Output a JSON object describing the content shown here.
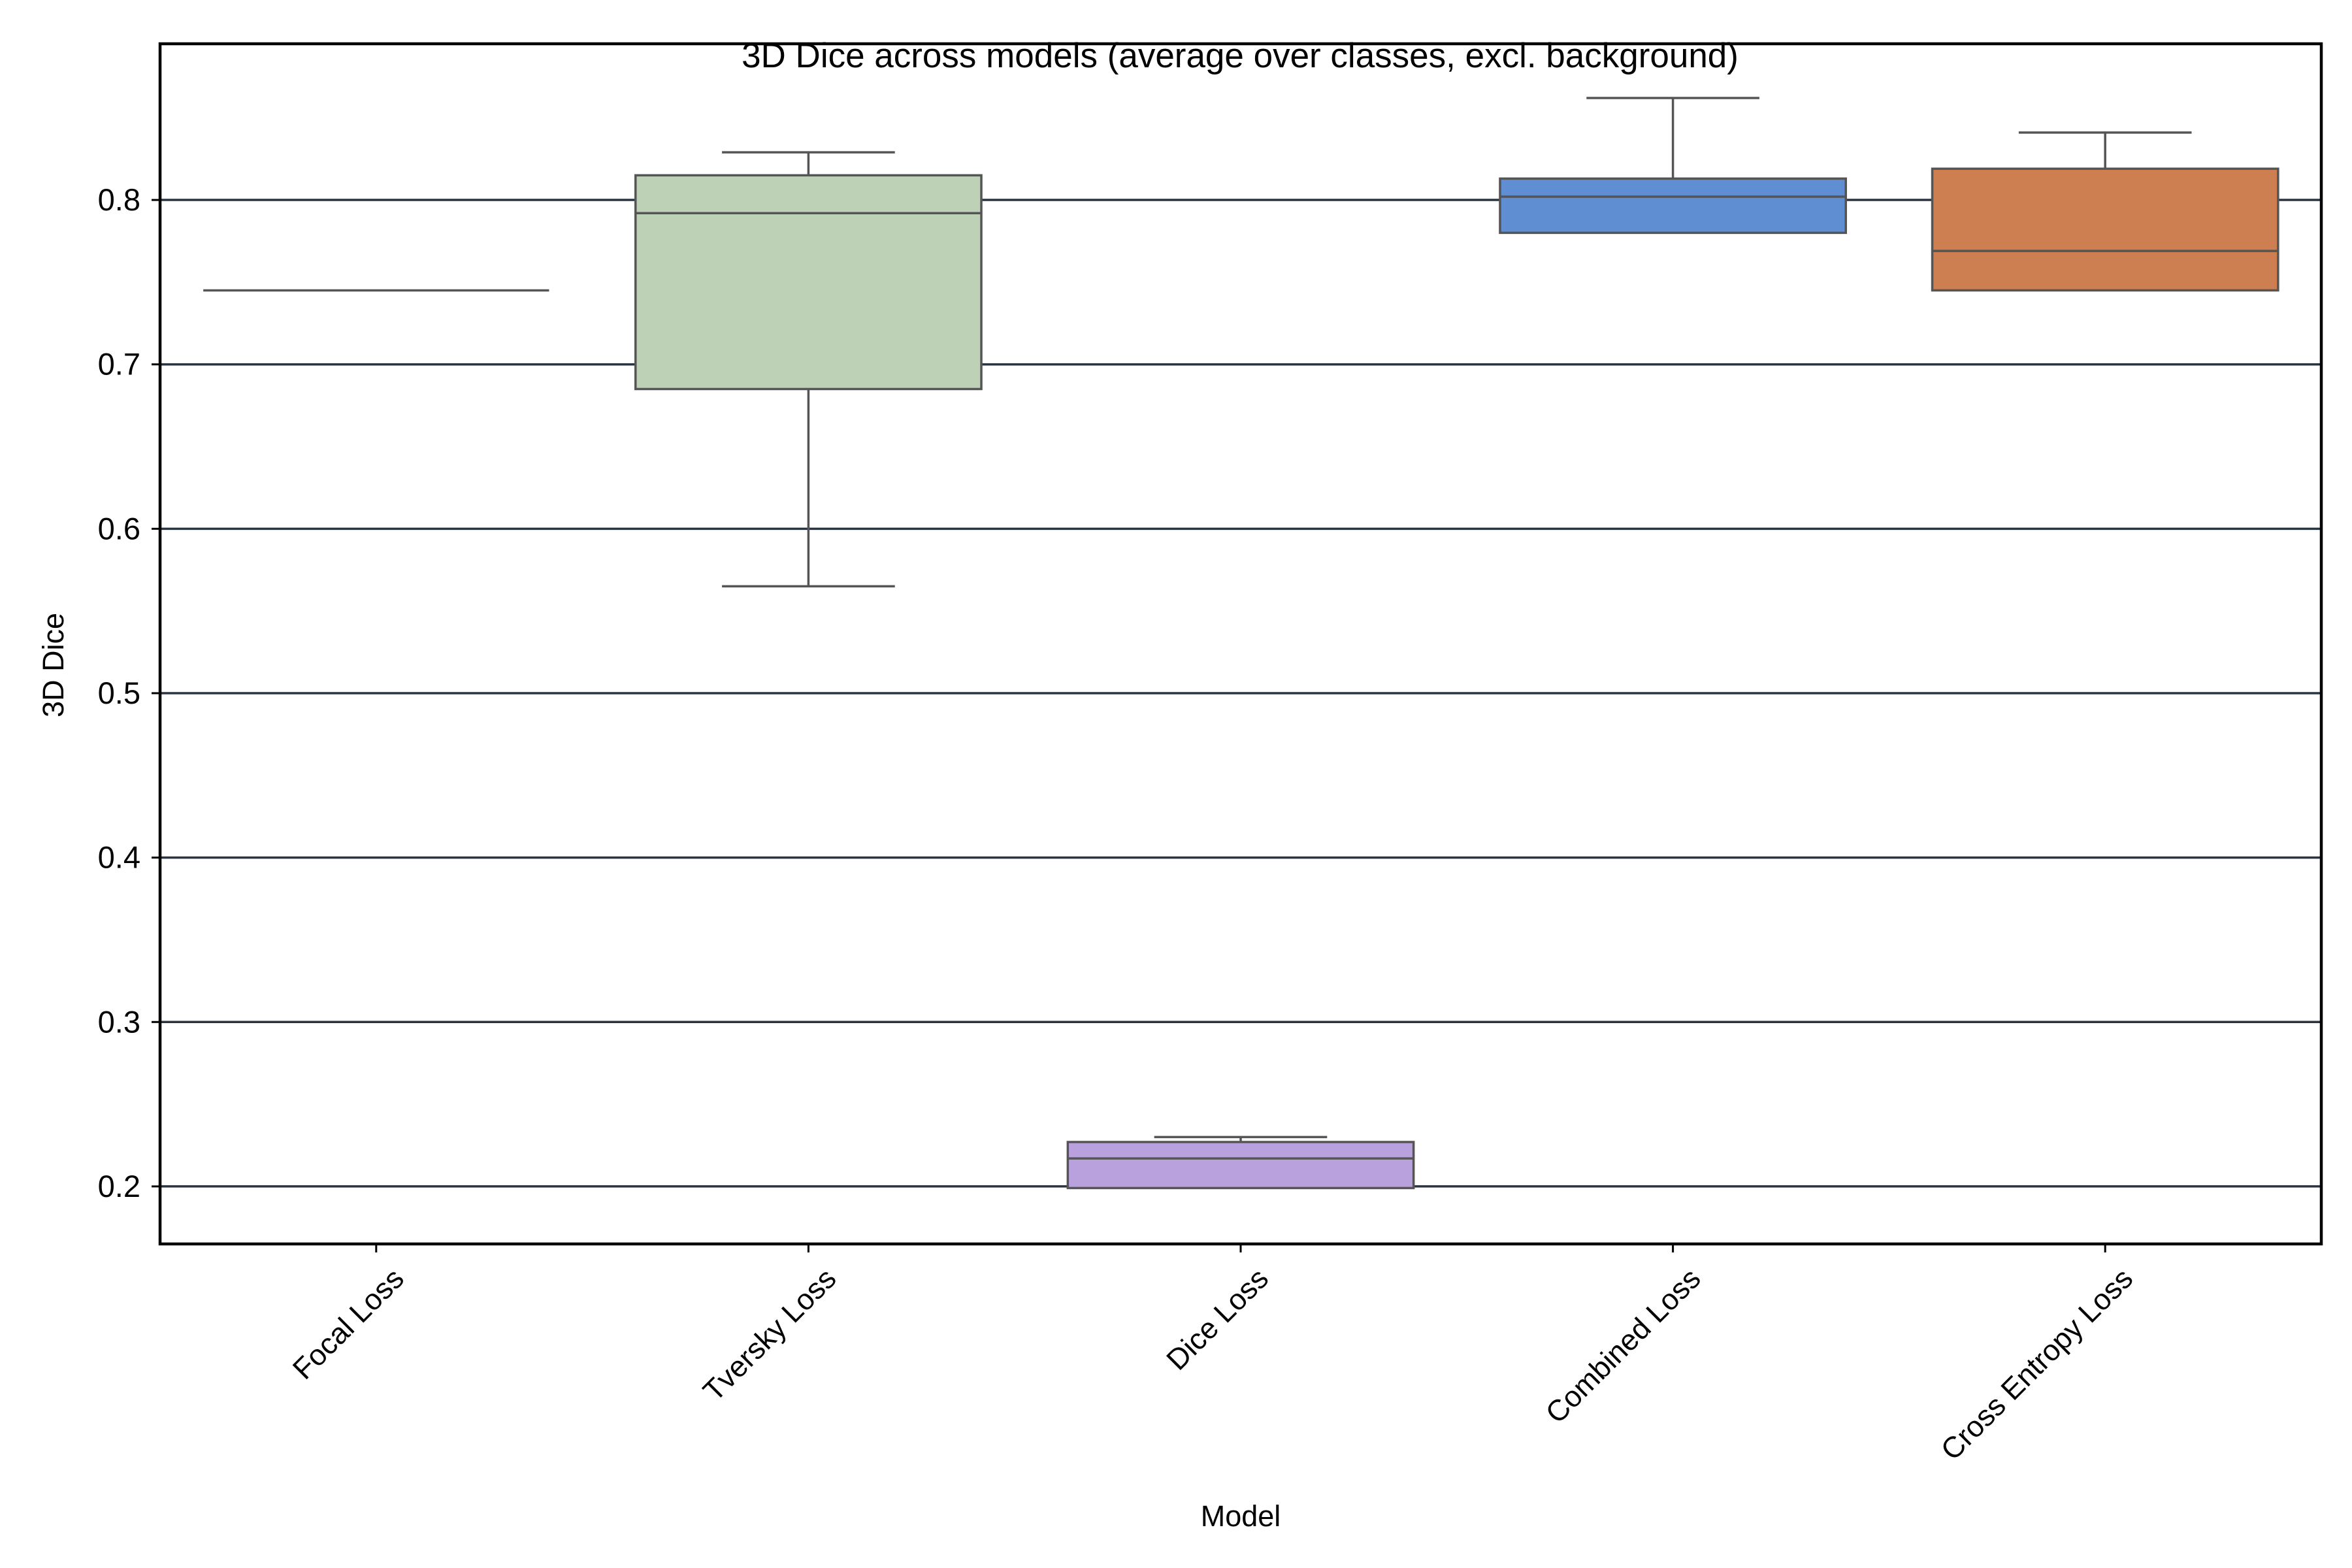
{
  "chart_data": {
    "type": "box",
    "title": "3D Dice across models (average over classes, excl. background)",
    "xlabel": "Model",
    "ylabel": "3D Dice",
    "ylim": [
      0.165,
      0.895
    ],
    "yticks": [
      "0.2",
      "0.3",
      "0.4",
      "0.5",
      "0.6",
      "0.7",
      "0.8"
    ],
    "grid": true,
    "legend": "none",
    "categories": [
      "Focal Loss",
      "Tversky Loss",
      "Dice Loss",
      "Combined Loss",
      "Cross Entropy Loss"
    ],
    "boxes": [
      {
        "category": "Focal Loss",
        "min": 0.745,
        "q1": 0.745,
        "median": 0.745,
        "q3": 0.745,
        "max": 0.745,
        "color": "#8c8c8c"
      },
      {
        "category": "Tversky Loss",
        "min": 0.565,
        "q1": 0.685,
        "median": 0.792,
        "q3": 0.815,
        "max": 0.829,
        "color": "#bdd1b7"
      },
      {
        "category": "Dice Loss",
        "min": 0.199,
        "q1": 0.199,
        "median": 0.217,
        "q3": 0.227,
        "max": 0.23,
        "color": "#b9a1de"
      },
      {
        "category": "Combined Loss",
        "min": 0.78,
        "q1": 0.78,
        "median": 0.802,
        "q3": 0.813,
        "max": 0.862,
        "color": "#5f8ed2"
      },
      {
        "category": "Cross Entropy Loss",
        "min": 0.745,
        "q1": 0.745,
        "median": 0.769,
        "q3": 0.819,
        "max": 0.841,
        "color": "#cd7f52"
      }
    ]
  }
}
